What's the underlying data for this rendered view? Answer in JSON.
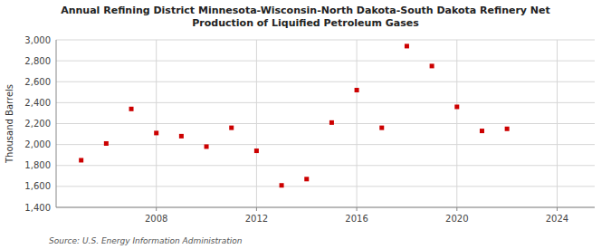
{
  "chart_data": {
    "type": "scatter",
    "title": "Annual Refining District Minnesota-Wisconsin-North Dakota-South Dakota Refinery Net\nProduction of Liquified Petroleum Gases",
    "y_label": "Thousand Barrels",
    "source": "Source: U.S. Energy Information Administration",
    "x": [
      2005,
      2006,
      2007,
      2008,
      2009,
      2010,
      2011,
      2012,
      2013,
      2014,
      2015,
      2016,
      2017,
      2018,
      2019,
      2020,
      2021,
      2022
    ],
    "values": [
      1850,
      2010,
      2340,
      2110,
      2080,
      1980,
      2160,
      1940,
      1610,
      1670,
      2210,
      2520,
      2160,
      2940,
      2750,
      2360,
      2130,
      2150
    ],
    "color": "#cc0000",
    "marker": "square",
    "xlim": [
      2004,
      2025.5
    ],
    "xticks": [
      2008,
      2012,
      2016,
      2020,
      2024
    ],
    "ylim": [
      1400,
      3000
    ],
    "yticks": [
      {
        "value": 1400,
        "label": "1,400"
      },
      {
        "value": 1600,
        "label": "1,600"
      },
      {
        "value": 1800,
        "label": "1,800"
      },
      {
        "value": 2000,
        "label": "2,000"
      },
      {
        "value": 2200,
        "label": "2,200"
      },
      {
        "value": 2400,
        "label": "2,400"
      },
      {
        "value": 2600,
        "label": "2,600"
      },
      {
        "value": 2800,
        "label": "2,800"
      },
      {
        "value": 3000,
        "label": "3,000"
      }
    ],
    "grid": true
  }
}
